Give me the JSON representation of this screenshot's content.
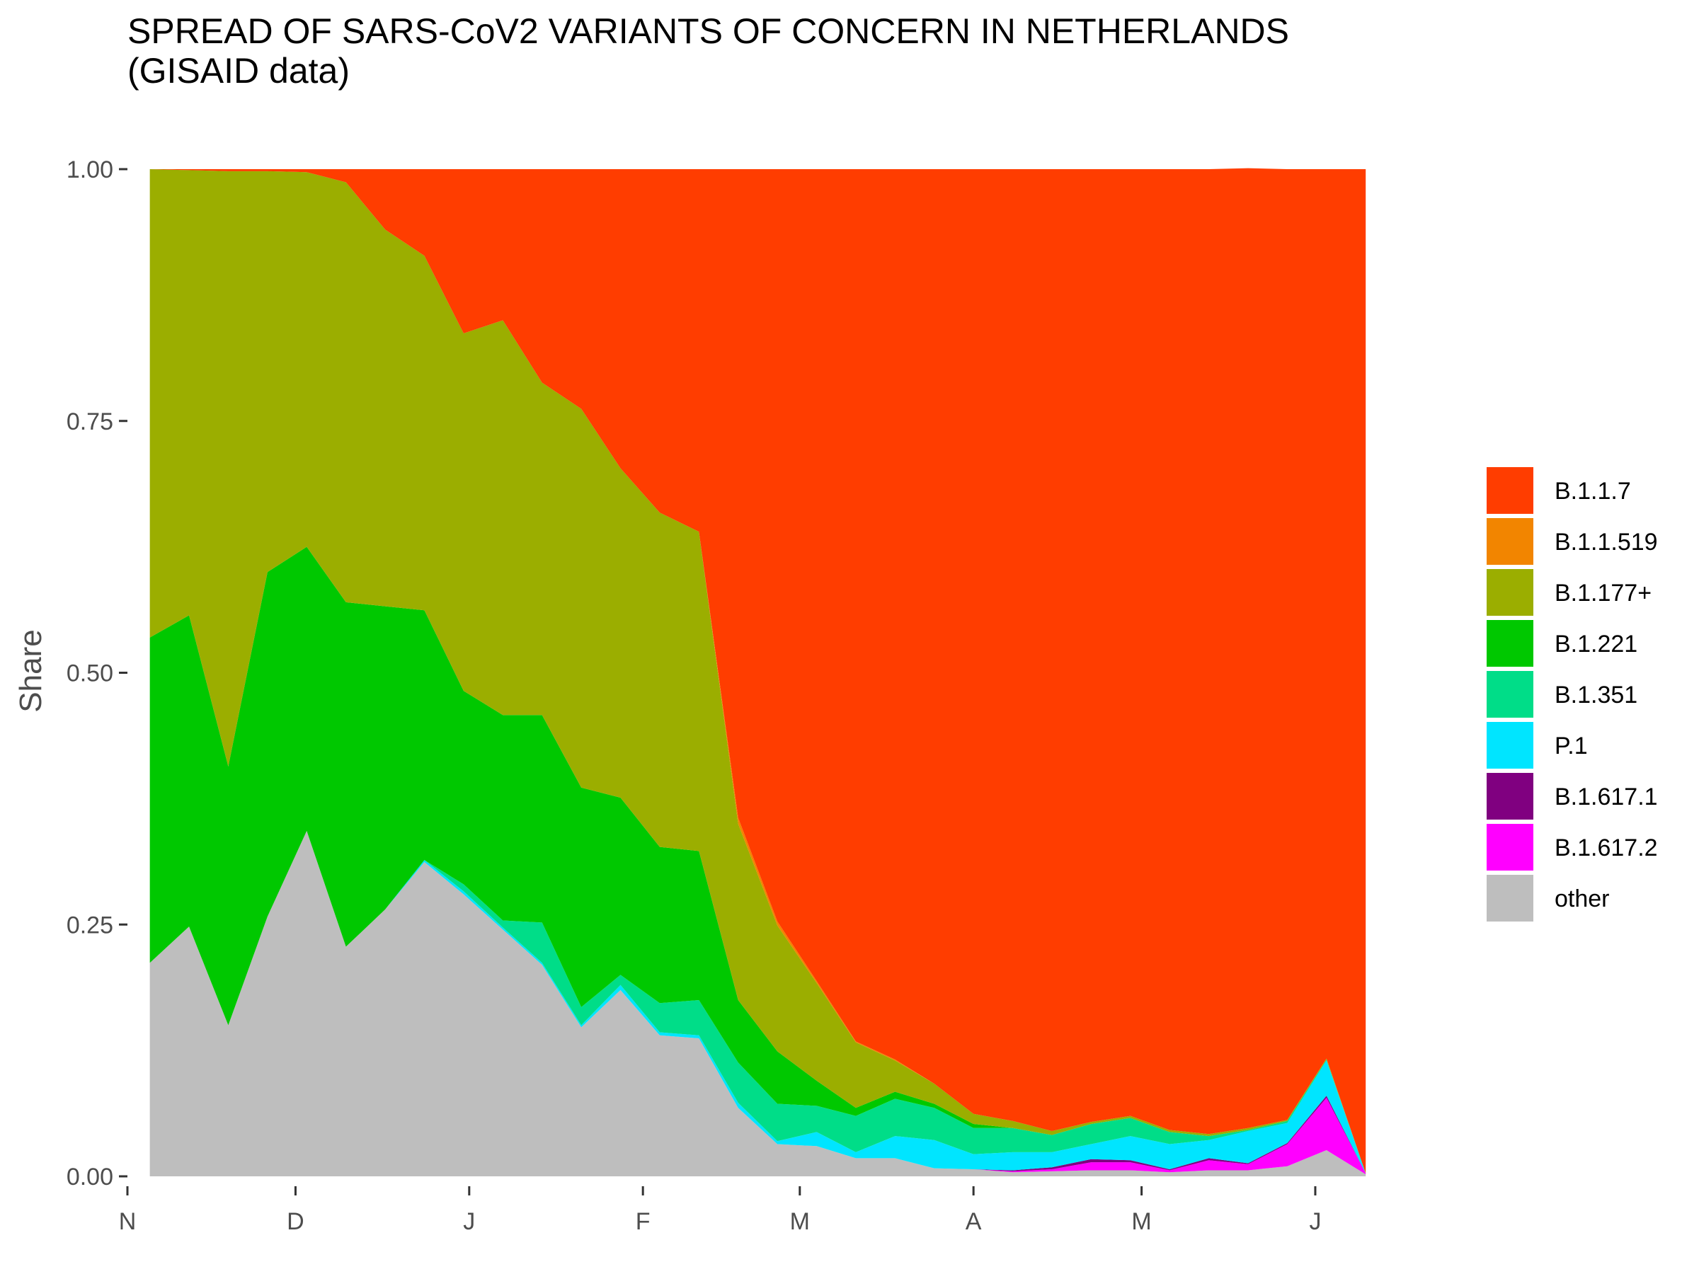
{
  "chart_data": {
    "type": "area",
    "stacked": true,
    "normalized": true,
    "title": "SPREAD OF SARS-CoV2 VARIANTS OF CONCERN IN NETHERLANDS\n(GISAID data)",
    "xlabel": "",
    "ylabel": "Share",
    "ylim": [
      0,
      1
    ],
    "y_ticks": [
      "0.00",
      "0.25",
      "0.50",
      "0.75",
      "1.00"
    ],
    "x_range": [
      "2020-11-01",
      "2021-06-24"
    ],
    "x_tick_labels": [
      {
        "date": "2020-11-01",
        "label": "N"
      },
      {
        "date": "2020-12-01",
        "label": "D"
      },
      {
        "date": "2021-01-01",
        "label": "J"
      },
      {
        "date": "2021-02-01",
        "label": "F"
      },
      {
        "date": "2021-03-01",
        "label": "M"
      },
      {
        "date": "2021-04-01",
        "label": "A"
      },
      {
        "date": "2021-05-01",
        "label": "M"
      },
      {
        "date": "2021-06-01",
        "label": "J"
      }
    ],
    "grid": false,
    "legend_position": "right",
    "x": [
      "2020-11-05",
      "2020-11-12",
      "2020-11-19",
      "2020-11-26",
      "2020-12-03",
      "2020-12-10",
      "2020-12-17",
      "2020-12-24",
      "2020-12-31",
      "2021-01-07",
      "2021-01-14",
      "2021-01-21",
      "2021-01-28",
      "2021-02-04",
      "2021-02-11",
      "2021-02-18",
      "2021-02-25",
      "2021-03-04",
      "2021-03-11",
      "2021-03-18",
      "2021-03-25",
      "2021-04-01",
      "2021-04-08",
      "2021-04-15",
      "2021-04-22",
      "2021-04-29",
      "2021-05-06",
      "2021-05-13",
      "2021-05-20",
      "2021-05-27",
      "2021-06-03",
      "2021-06-10"
    ],
    "series": [
      {
        "name": "other",
        "color": "#BEBEBE",
        "values": [
          0.212,
          0.248,
          0.15,
          0.258,
          0.343,
          0.228,
          0.265,
          0.312,
          0.28,
          0.245,
          0.21,
          0.148,
          0.185,
          0.14,
          0.137,
          0.068,
          0.032,
          0.03,
          0.018,
          0.018,
          0.008,
          0.007,
          0.004,
          0.005,
          0.006,
          0.006,
          0.004,
          0.006,
          0.006,
          0.01,
          0.026,
          0.002
        ]
      },
      {
        "name": "B.1.617.2",
        "color": "#FF00FF",
        "values": [
          0,
          0,
          0,
          0,
          0,
          0,
          0,
          0,
          0,
          0,
          0,
          0,
          0,
          0,
          0,
          0,
          0,
          0,
          0,
          0,
          0,
          0,
          0.001,
          0.002,
          0.008,
          0.008,
          0.002,
          0.01,
          0.006,
          0.022,
          0.052,
          0.001
        ]
      },
      {
        "name": "B.1.617.1",
        "color": "#800080",
        "values": [
          0,
          0,
          0,
          0,
          0,
          0,
          0,
          0,
          0,
          0,
          0,
          0,
          0,
          0,
          0,
          0,
          0,
          0,
          0,
          0,
          0,
          0,
          0.001,
          0.002,
          0.003,
          0.002,
          0.001,
          0.002,
          0.001,
          0.001,
          0.002,
          0
        ]
      },
      {
        "name": "P.1",
        "color": "#00E5FF",
        "values": [
          0,
          0,
          0,
          0,
          0,
          0,
          0,
          0.002,
          0.003,
          0.002,
          0.002,
          0.002,
          0.005,
          0.003,
          0.003,
          0.005,
          0.003,
          0.014,
          0.006,
          0.022,
          0.028,
          0.015,
          0.018,
          0.015,
          0.015,
          0.024,
          0.025,
          0.018,
          0.032,
          0.02,
          0.035,
          0
        ]
      },
      {
        "name": "B.1.351",
        "color": "#00DD88",
        "values": [
          0,
          0,
          0,
          0,
          0,
          0,
          0,
          0,
          0.007,
          0.007,
          0.04,
          0.018,
          0.01,
          0.029,
          0.035,
          0.04,
          0.037,
          0.026,
          0.036,
          0.037,
          0.032,
          0.026,
          0.024,
          0.017,
          0.02,
          0.018,
          0.012,
          0.004,
          0.001,
          0.002,
          0.001,
          0
        ]
      },
      {
        "name": "B.1.221",
        "color": "#00C800",
        "values": [
          0.323,
          0.309,
          0.257,
          0.342,
          0.282,
          0.342,
          0.301,
          0.248,
          0.192,
          0.204,
          0.206,
          0.218,
          0.176,
          0.155,
          0.148,
          0.062,
          0.052,
          0.025,
          0.008,
          0.007,
          0.004,
          0.004,
          0,
          0,
          0,
          0,
          0,
          0,
          0,
          0,
          0,
          0
        ]
      },
      {
        "name": "B.1.177+",
        "color": "#9BAE00",
        "values": [
          0.465,
          0.442,
          0.591,
          0.398,
          0.372,
          0.417,
          0.374,
          0.352,
          0.355,
          0.392,
          0.33,
          0.376,
          0.327,
          0.332,
          0.317,
          0.175,
          0.125,
          0.097,
          0.065,
          0.031,
          0.02,
          0.01,
          0.007,
          0.004,
          0.002,
          0.002,
          0.002,
          0.002,
          0.002,
          0.001,
          0.001,
          0
        ]
      },
      {
        "name": "B.1.1.519",
        "color": "#F28500",
        "values": [
          0,
          0,
          0,
          0,
          0,
          0,
          0,
          0,
          0,
          0,
          0,
          0,
          0,
          0,
          0,
          0.006,
          0.004,
          0.002,
          0.001,
          0.001,
          0,
          0,
          0,
          0,
          0,
          0,
          0,
          0,
          0,
          0,
          0,
          0
        ]
      },
      {
        "name": "B.1.1.7",
        "color": "#FF3D00",
        "values": [
          0,
          0.001,
          0.002,
          0.002,
          0.003,
          0.013,
          0.06,
          0.086,
          0.163,
          0.15,
          0.212,
          0.238,
          0.297,
          0.341,
          0.36,
          0.644,
          0.747,
          0.806,
          0.866,
          0.884,
          0.908,
          0.938,
          0.945,
          0.955,
          0.946,
          0.94,
          0.954,
          0.958,
          0.953,
          0.944,
          0.883,
          0.997
        ]
      }
    ],
    "legend_order": [
      "B.1.1.7",
      "B.1.1.519",
      "B.1.177+",
      "B.1.221",
      "B.1.351",
      "P.1",
      "B.1.617.1",
      "B.1.617.2",
      "other"
    ]
  }
}
